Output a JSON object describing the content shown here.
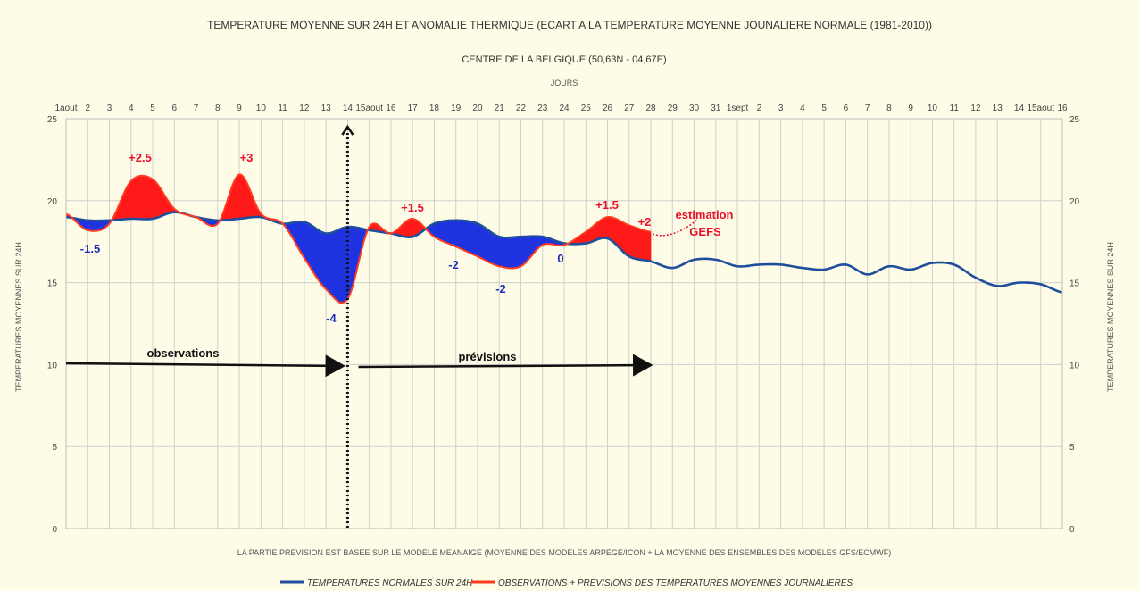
{
  "chart_data": {
    "type": "area",
    "title": "TEMPERATURE MOYENNE SUR 24H ET ANOMALIE THERMIQUE (ECART A LA TEMPERATURE MOYENNE JOUNALIERE NORMALE (1981-2010))",
    "subtitle": "CENTRE DE LA BELGIQUE (50,63N - 04,67E)",
    "xlabel_top": "JOURS",
    "ylabel": "TEMPERATURES MOYENNES SUR 24H",
    "ylim": [
      0,
      25
    ],
    "yticks": [
      0,
      5,
      10,
      15,
      20,
      25
    ],
    "grid": true,
    "x_tick_labels": [
      "1aout",
      "2",
      "3",
      "4",
      "5",
      "6",
      "7",
      "8",
      "9",
      "10",
      "11",
      "12",
      "13",
      "14",
      "15aout",
      "16",
      "17",
      "18",
      "19",
      "20",
      "21",
      "22",
      "23",
      "24",
      "25",
      "26",
      "27",
      "28",
      "29",
      "30",
      "31",
      "1sept",
      "2",
      "3",
      "4",
      "5",
      "6",
      "7",
      "8",
      "9",
      "10",
      "11",
      "12",
      "13",
      "14",
      "15aout",
      "16"
    ],
    "footnote": "LA PARTIE PREVISION EST BASEE SUR LE MODELE MEANAIGE (MOYENNE DES MODELES ARPEGE/ICON + LA MOYENNE DES ENSEMBLES DES MODELES GFS/ECMWF)",
    "legend_position": "bottom",
    "series": [
      {
        "name": "TEMPERATURES NORMALES SUR 24H",
        "color": "#1f4e9c",
        "x": [
          1,
          2,
          3,
          4,
          5,
          6,
          7,
          8,
          9,
          10,
          11,
          12,
          13,
          14,
          15,
          16,
          17,
          18,
          19,
          20,
          21,
          22,
          23,
          24,
          25,
          26,
          27,
          28,
          29,
          30,
          31,
          32,
          33,
          34,
          35,
          36,
          37,
          38,
          39,
          40,
          41,
          42,
          43,
          44,
          45,
          46,
          47
        ],
        "values": [
          19.0,
          18.8,
          18.8,
          18.9,
          18.9,
          19.3,
          19.0,
          18.8,
          18.9,
          19.0,
          18.6,
          18.7,
          18.0,
          18.4,
          18.2,
          18.0,
          17.8,
          18.6,
          18.8,
          18.6,
          17.8,
          17.8,
          17.8,
          17.4,
          17.4,
          17.7,
          16.6,
          16.3,
          15.9,
          16.4,
          16.4,
          16.0,
          16.1,
          16.1,
          15.9,
          15.8,
          16.1,
          15.5,
          16.0,
          15.8,
          16.2,
          16.1,
          15.3,
          14.8,
          15.0,
          14.9,
          14.4
        ]
      },
      {
        "name": "OBSERVATIONS + PREVISIONS DES TEMPERATURES MOYENNES JOURNALIERES",
        "color": "#ff3b1f",
        "x": [
          1,
          2,
          3,
          4,
          5,
          6,
          7,
          8,
          9,
          10,
          11,
          12,
          13,
          14,
          15,
          16,
          17,
          18,
          19,
          20,
          21,
          22,
          23,
          24,
          25,
          26,
          27,
          28
        ],
        "values": [
          19.2,
          18.2,
          18.6,
          21.2,
          21.3,
          19.5,
          19.0,
          18.6,
          21.6,
          19.2,
          18.6,
          16.5,
          14.6,
          14.0,
          18.4,
          18.0,
          18.9,
          17.8,
          17.2,
          16.6,
          16.0,
          16.0,
          17.3,
          17.3,
          18.1,
          19.0,
          18.5,
          18.1
        ]
      }
    ],
    "annotations": [
      {
        "text": "+2.5",
        "color": "red"
      },
      {
        "text": "+3",
        "color": "red"
      },
      {
        "text": "-1.5",
        "color": "blue"
      },
      {
        "text": "-4",
        "color": "blue"
      },
      {
        "text": "+1.5",
        "color": "red"
      },
      {
        "text": "-2",
        "color": "blue"
      },
      {
        "text": "-2",
        "color": "blue"
      },
      {
        "text": "0",
        "color": "blue"
      },
      {
        "text": "+1.5",
        "color": "red"
      },
      {
        "text": "+2",
        "color": "red"
      },
      {
        "text": "estimation",
        "color": "red"
      },
      {
        "text": "GEFS",
        "color": "red"
      }
    ],
    "arrows": [
      {
        "label": "observations"
      },
      {
        "label": "prévisions"
      }
    ],
    "colors": {
      "above": "#ff1a1a",
      "below": "#1f33e0",
      "background": "#fefce6",
      "grid": "#cfcfcf"
    }
  }
}
